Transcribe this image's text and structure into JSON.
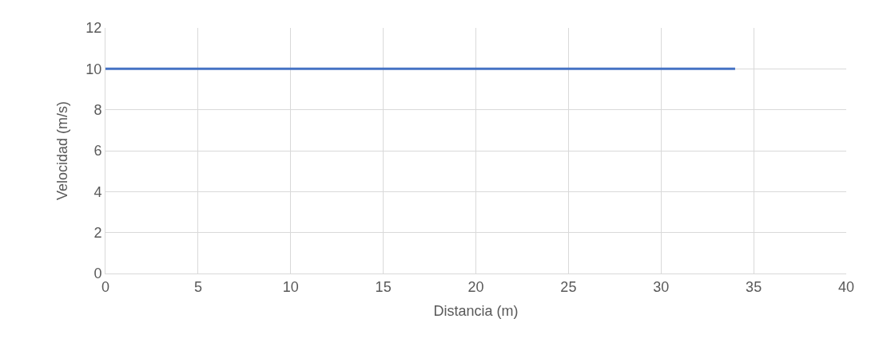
{
  "chart_data": {
    "type": "line",
    "xlabel": "Distancia (m)",
    "ylabel": "Velocidad (m/s)",
    "x": [
      0,
      34
    ],
    "series": [
      {
        "color": "#4472c4",
        "values": [
          10,
          10
        ]
      }
    ],
    "xlim": [
      0,
      40
    ],
    "xticks": [
      0,
      5,
      10,
      15,
      20,
      25,
      30,
      35,
      40
    ],
    "ylim": [
      0,
      12
    ],
    "yticks": [
      0,
      2,
      4,
      6,
      8,
      10,
      12
    ],
    "grid": true,
    "marker": "none",
    "line_style": "solid"
  }
}
